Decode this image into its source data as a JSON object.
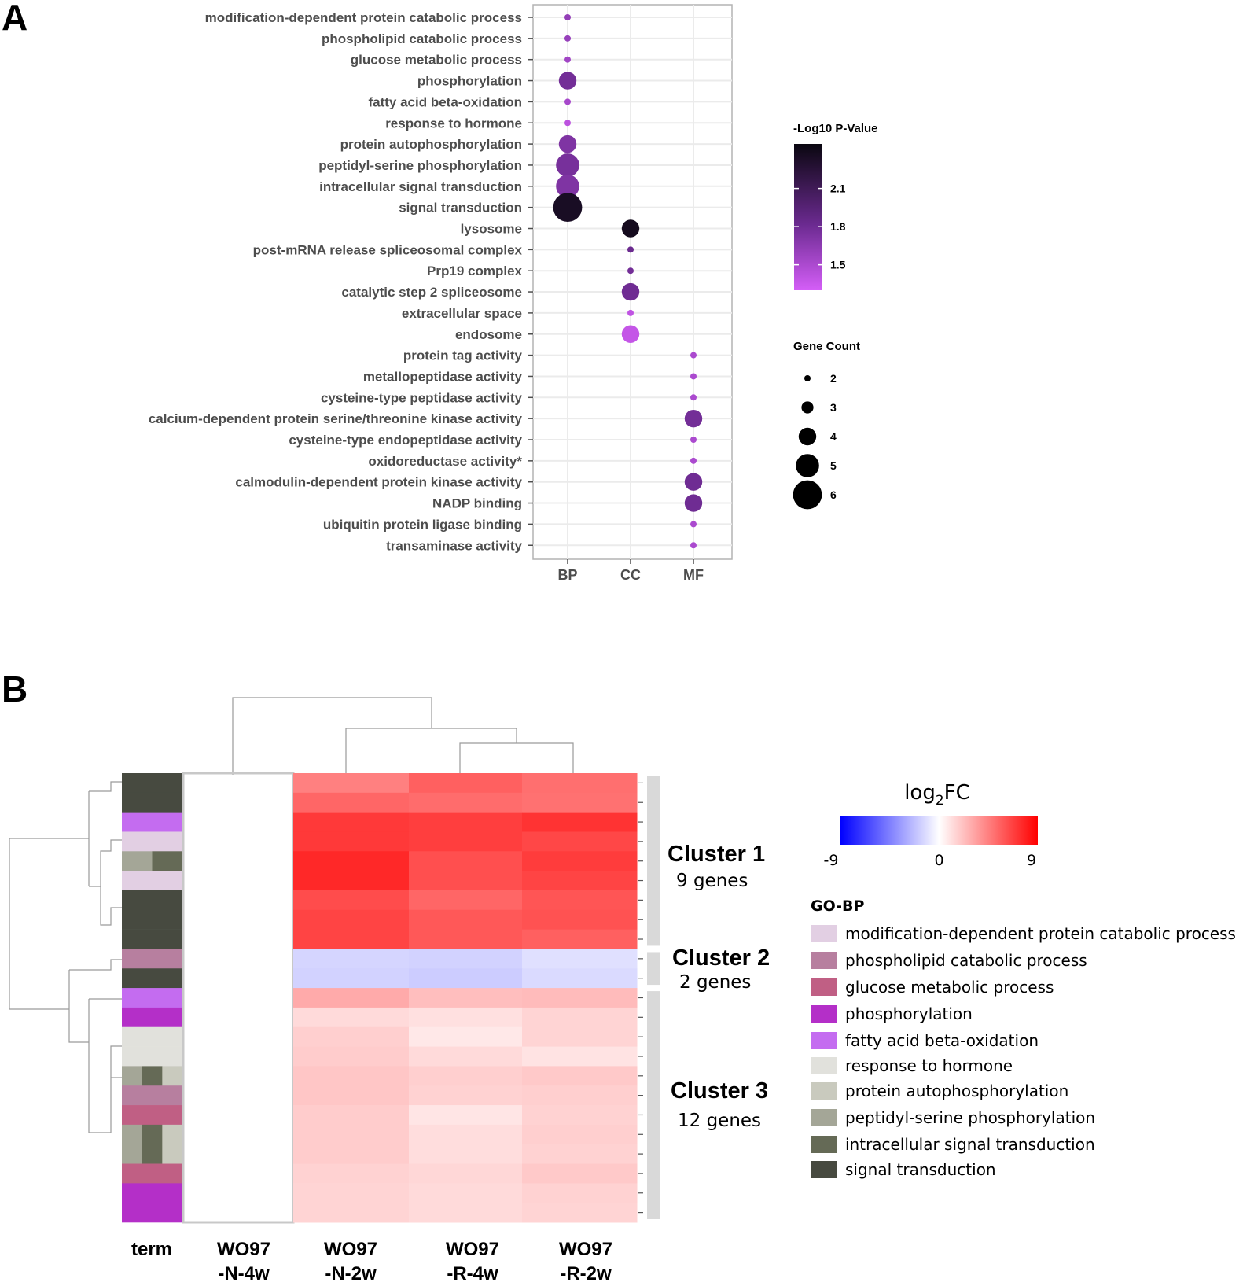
{
  "panels": {
    "a": "A",
    "b": "B"
  },
  "chart_data": [
    {
      "type": "scatter",
      "subtype": "bubble",
      "title": "",
      "xlabel": "",
      "ylabel": "",
      "x_categories": [
        "BP",
        "CC",
        "MF"
      ],
      "color_legend": {
        "title": "-Log10 P-Value",
        "ticks": [
          2.1,
          1.8,
          1.5
        ],
        "range": [
          1.3,
          2.45
        ],
        "low_color": "#d45ef7",
        "mid_color": "#6b2a90",
        "high_color": "#0a0710"
      },
      "size_legend": {
        "title": "Gene Count",
        "values": [
          2,
          3,
          4,
          5,
          6
        ]
      },
      "points": [
        {
          "term": "modification-dependent protein catabolic process",
          "category": "BP",
          "gene_count": 2,
          "neg_log10_p": 1.62
        },
        {
          "term": "phospholipid catabolic process",
          "category": "BP",
          "gene_count": 2,
          "neg_log10_p": 1.6
        },
        {
          "term": "glucose metabolic process",
          "category": "BP",
          "gene_count": 2,
          "neg_log10_p": 1.55
        },
        {
          "term": "phosphorylation",
          "category": "BP",
          "gene_count": 4,
          "neg_log10_p": 1.78
        },
        {
          "term": "fatty acid beta-oxidation",
          "category": "BP",
          "gene_count": 2,
          "neg_log10_p": 1.52
        },
        {
          "term": "response to hormone",
          "category": "BP",
          "gene_count": 2,
          "neg_log10_p": 1.42
        },
        {
          "term": "protein autophosphorylation",
          "category": "BP",
          "gene_count": 4,
          "neg_log10_p": 1.72
        },
        {
          "term": "peptidyl-serine phosphorylation",
          "category": "BP",
          "gene_count": 5,
          "neg_log10_p": 1.76
        },
        {
          "term": "intracellular signal transduction",
          "category": "BP",
          "gene_count": 5,
          "neg_log10_p": 1.72
        },
        {
          "term": "signal transduction",
          "category": "BP",
          "gene_count": 6,
          "neg_log10_p": 2.35
        },
        {
          "term": "lysosome",
          "category": "CC",
          "gene_count": 4,
          "neg_log10_p": 2.38
        },
        {
          "term": "post-mRNA release spliceosomal complex",
          "category": "CC",
          "gene_count": 2,
          "neg_log10_p": 1.82
        },
        {
          "term": "Prp19 complex",
          "category": "CC",
          "gene_count": 2,
          "neg_log10_p": 1.78
        },
        {
          "term": "catalytic step 2 spliceosome",
          "category": "CC",
          "gene_count": 4,
          "neg_log10_p": 1.8
        },
        {
          "term": "extracellular space",
          "category": "CC",
          "gene_count": 2,
          "neg_log10_p": 1.4
        },
        {
          "term": "endosome",
          "category": "CC",
          "gene_count": 4,
          "neg_log10_p": 1.38
        },
        {
          "term": "protein tag activity",
          "category": "MF",
          "gene_count": 2,
          "neg_log10_p": 1.5
        },
        {
          "term": "metallopeptidase activity",
          "category": "MF",
          "gene_count": 2,
          "neg_log10_p": 1.5
        },
        {
          "term": "cysteine-type peptidase activity",
          "category": "MF",
          "gene_count": 2,
          "neg_log10_p": 1.5
        },
        {
          "term": "calcium-dependent protein serine/threonine kinase activity",
          "category": "MF",
          "gene_count": 4,
          "neg_log10_p": 1.78
        },
        {
          "term": "cysteine-type endopeptidase activity",
          "category": "MF",
          "gene_count": 2,
          "neg_log10_p": 1.5
        },
        {
          "term": "oxidoreductase activity*",
          "category": "MF",
          "gene_count": 2,
          "neg_log10_p": 1.5
        },
        {
          "term": "calmodulin-dependent protein kinase activity",
          "category": "MF",
          "gene_count": 4,
          "neg_log10_p": 1.8
        },
        {
          "term": "NADP binding",
          "category": "MF",
          "gene_count": 4,
          "neg_log10_p": 1.8
        },
        {
          "term": "ubiquitin protein ligase binding",
          "category": "MF",
          "gene_count": 2,
          "neg_log10_p": 1.5
        },
        {
          "term": "transaminase activity",
          "category": "MF",
          "gene_count": 2,
          "neg_log10_p": 1.5
        }
      ]
    },
    {
      "type": "heatmap",
      "title": "",
      "columns": [
        {
          "label_1": "WO97",
          "label_2": "-N-4w"
        },
        {
          "label_1": "WO97",
          "label_2": "-N-2w"
        },
        {
          "label_1": "WO97",
          "label_2": "-R-4w"
        },
        {
          "label_1": "WO97",
          "label_2": "-R-2w"
        }
      ],
      "annotation_column_label": "term",
      "color_scale": {
        "title_main": "log",
        "title_sub": "2",
        "title_tail": "FC",
        "min": -9,
        "max": 9,
        "ticks": [
          -9,
          0,
          9
        ],
        "low_color": "#0000ff",
        "mid_color": "#ffffff",
        "high_color": "#ff0000"
      },
      "gene_terms": [
        "signal transduction",
        "signal transduction",
        "fatty acid beta-oxidation",
        "modification-dependent protein catabolic process",
        [
          "peptidyl-serine phosphorylation",
          "intracellular signal transduction"
        ],
        "modification-dependent protein catabolic process",
        "signal transduction",
        "signal transduction",
        "signal transduction",
        "phospholipid catabolic process",
        "signal transduction",
        "fatty acid beta-oxidation",
        "phosphorylation",
        "response to hormone",
        "response to hormone",
        [
          "peptidyl-serine phosphorylation",
          "intracellular signal transduction",
          "protein autophosphorylation"
        ],
        "phospholipid catabolic process",
        "glucose metabolic process",
        [
          "peptidyl-serine phosphorylation",
          "intracellular signal transduction",
          "protein autophosphorylation"
        ],
        [
          "peptidyl-serine phosphorylation",
          "intracellular signal transduction",
          "protein autophosphorylation"
        ],
        "glucose metabolic process",
        "phosphorylation",
        "phosphorylation"
      ],
      "values": [
        [
          null,
          4.5,
          5.6,
          5.1
        ],
        [
          null,
          5.4,
          5.2,
          5.0
        ],
        [
          null,
          7.0,
          6.8,
          7.2
        ],
        [
          null,
          7.0,
          6.8,
          6.5
        ],
        [
          null,
          7.6,
          6.2,
          6.9
        ],
        [
          null,
          7.6,
          6.2,
          6.6
        ],
        [
          null,
          6.3,
          5.4,
          6.0
        ],
        [
          null,
          6.6,
          5.9,
          6.1
        ],
        [
          null,
          6.6,
          5.9,
          5.6
        ],
        [
          null,
          -1.5,
          -1.6,
          -1.1
        ],
        [
          null,
          -1.6,
          -1.8,
          -1.3
        ],
        [
          null,
          3.0,
          2.3,
          2.4
        ],
        [
          null,
          1.3,
          1.1,
          1.5
        ],
        [
          null,
          1.7,
          0.8,
          1.5
        ],
        [
          null,
          1.8,
          1.3,
          1.0
        ],
        [
          null,
          2.0,
          1.7,
          1.9
        ],
        [
          null,
          2.0,
          1.6,
          1.7
        ],
        [
          null,
          1.8,
          0.9,
          1.6
        ],
        [
          null,
          1.8,
          1.2,
          1.7
        ],
        [
          null,
          1.8,
          1.2,
          1.6
        ],
        [
          null,
          1.6,
          1.4,
          1.9
        ],
        [
          null,
          1.5,
          1.3,
          1.6
        ],
        [
          null,
          1.5,
          1.3,
          1.5
        ]
      ],
      "clusters": [
        {
          "title": "Cluster 1",
          "subtitle": "9 genes",
          "n": 9
        },
        {
          "title": "Cluster 2",
          "subtitle": "2 genes",
          "n": 2
        },
        {
          "title": "Cluster 3",
          "subtitle": "12 genes",
          "n": 12
        }
      ],
      "go_bp_legend": {
        "title": "GO-BP",
        "items": [
          {
            "label": "modification-dependent protein catabolic process",
            "color": "#e2cfe3"
          },
          {
            "label": "phospholipid catabolic process",
            "color": "#b77f9f"
          },
          {
            "label": "glucose metabolic process",
            "color": "#c05f84"
          },
          {
            "label": "phosphorylation",
            "color": "#b42fc8"
          },
          {
            "label": "fatty acid beta-oxidation",
            "color": "#c46cf0"
          },
          {
            "label": "response to hormone",
            "color": "#e1e1dc"
          },
          {
            "label": "protein autophosphorylation",
            "color": "#c9cabe"
          },
          {
            "label": "peptidyl-serine phosphorylation",
            "color": "#a4a697"
          },
          {
            "label": "intracellular signal transduction",
            "color": "#656a56"
          },
          {
            "label": "signal transduction",
            "color": "#474a40"
          }
        ]
      }
    }
  ]
}
